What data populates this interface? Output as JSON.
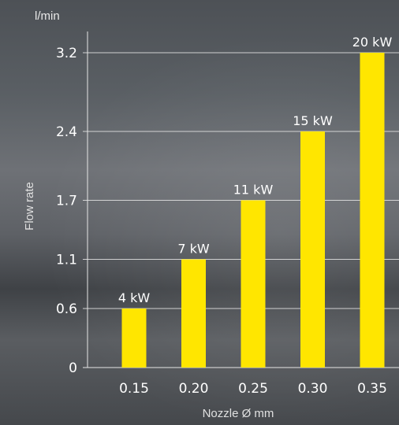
{
  "chart_data": {
    "type": "bar",
    "categories": [
      "0.15",
      "0.20",
      "0.25",
      "0.30",
      "0.35"
    ],
    "values": [
      0.6,
      1.1,
      1.7,
      2.4,
      3.2
    ],
    "data_labels": [
      "4 kW",
      "7 kW",
      "11 kW",
      "15 kW",
      "20 kW"
    ],
    "xlabel": "Nozzle Ø mm",
    "ylabel": "Flow rate",
    "y_unit": "l/min",
    "yticks": [
      0,
      0.6,
      1.1,
      1.7,
      2.4,
      3.2
    ],
    "ytick_labels": [
      "0",
      "0.6",
      "1.1",
      "1.7",
      "2.4",
      "3.2"
    ],
    "ylim": [
      0,
      3.2
    ],
    "grid": true,
    "colors": {
      "bar": "#ffe600",
      "grid": "#e6e6e6",
      "text": "#ffffff"
    }
  }
}
